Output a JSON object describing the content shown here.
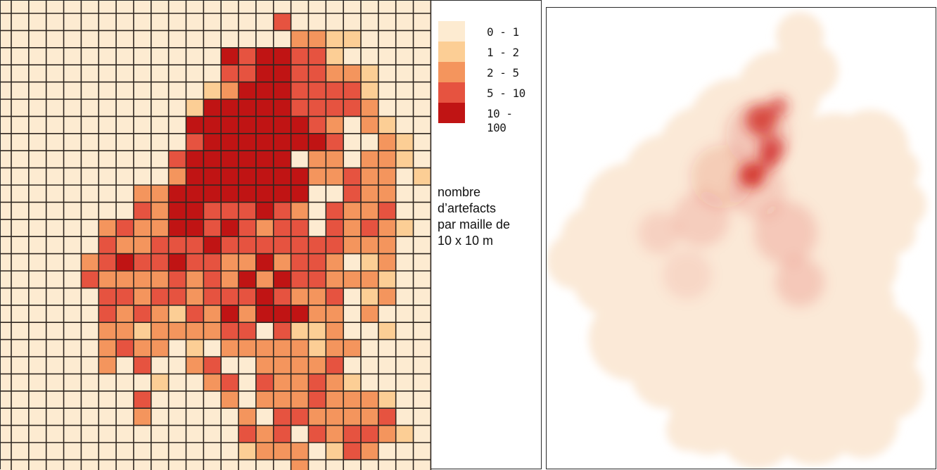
{
  "legend": {
    "title_lines": [
      "nombre",
      "d’artefacts",
      "par maille de",
      "10 x 10 m"
    ],
    "classes": [
      {
        "label": "0 - 1",
        "color": "#fdebd1"
      },
      {
        "label": "1 - 2",
        "color": "#fcce95"
      },
      {
        "label": "2 - 5",
        "color": "#f4955d"
      },
      {
        "label": "5 - 10",
        "color": "#e65340"
      },
      {
        "label": "10 - 100",
        "color": "#c01414"
      }
    ]
  },
  "grid_map": {
    "cols": 24,
    "rows": 27,
    "line_color": "#2e2620",
    "class_matrix": [
      "000000000000000300000000",
      "000000000000000022110000",
      "000000000000434433100000",
      "000000000000334433221000",
      "000000000001244433331000",
      "000000000014444433332000",
      "000000000044444443202100",
      "000000000034444444300210",
      "000000000344444402202210",
      "000000000244444442232201",
      "000000022444444440032200",
      "000000032443334320322300",
      "000002322443432330323210",
      "000003223334333333322200",
      "000023433433224233201200",
      "000032222323242433222100",
      "000003323323334322301200",
      "000003232132424442202000",
      "000002212222330311200100",
      "000002322010222221220000",
      "000002030023002222300000",
      "000000001002303223210000",
      "000000030000202223222100",
      "000000020000020332222300",
      "000000000000032303233210",
      "000000000000012220132000",
      "000000000000000020000000"
    ]
  },
  "heatmap": {
    "base_color": "#fbe9d7",
    "hot_color": "#cf1f1a"
  }
}
